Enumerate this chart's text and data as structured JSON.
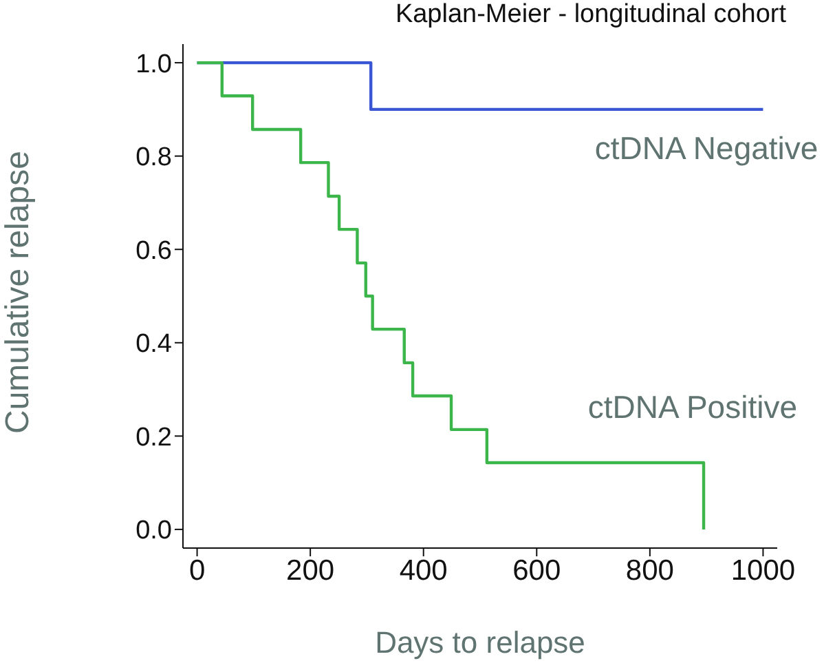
{
  "chart_data": {
    "type": "step",
    "title": "Kaplan-Meier - longitudinal cohort",
    "xlabel": "Days to relapse",
    "ylabel": "Cumulative relapse",
    "xlim": [
      -25,
      1025
    ],
    "xticks": [
      0,
      200,
      400,
      600,
      800,
      1000
    ],
    "ylim": [
      -0.04,
      1.04
    ],
    "yticks": [
      {
        "value": 0,
        "label": "0.0"
      },
      {
        "value": 0.2,
        "label": "0.2"
      },
      {
        "value": 0.4,
        "label": "0.4"
      },
      {
        "value": 0.6,
        "label": "0.6"
      },
      {
        "value": 0.8,
        "label": "0.8"
      },
      {
        "value": 1,
        "label": "1.0"
      }
    ],
    "grid": false,
    "legend": false,
    "marker": "none",
    "line_style": "solid",
    "series": [
      {
        "name": "ctDNA Negative",
        "color": "#3a56d4",
        "x": [
          0,
          307,
          1000
        ],
        "values": [
          1,
          0.9,
          0.9
        ]
      },
      {
        "name": "ctDNA Positive",
        "color": "#3cb54a",
        "x": [
          0,
          44,
          98,
          183,
          232,
          251,
          283,
          298,
          310,
          366,
          381,
          449,
          512,
          895
        ],
        "values": [
          1,
          0.929,
          0.857,
          0.786,
          0.714,
          0.643,
          0.571,
          0.5,
          0.429,
          0.357,
          0.286,
          0.214,
          0.143,
          0
        ]
      }
    ]
  }
}
